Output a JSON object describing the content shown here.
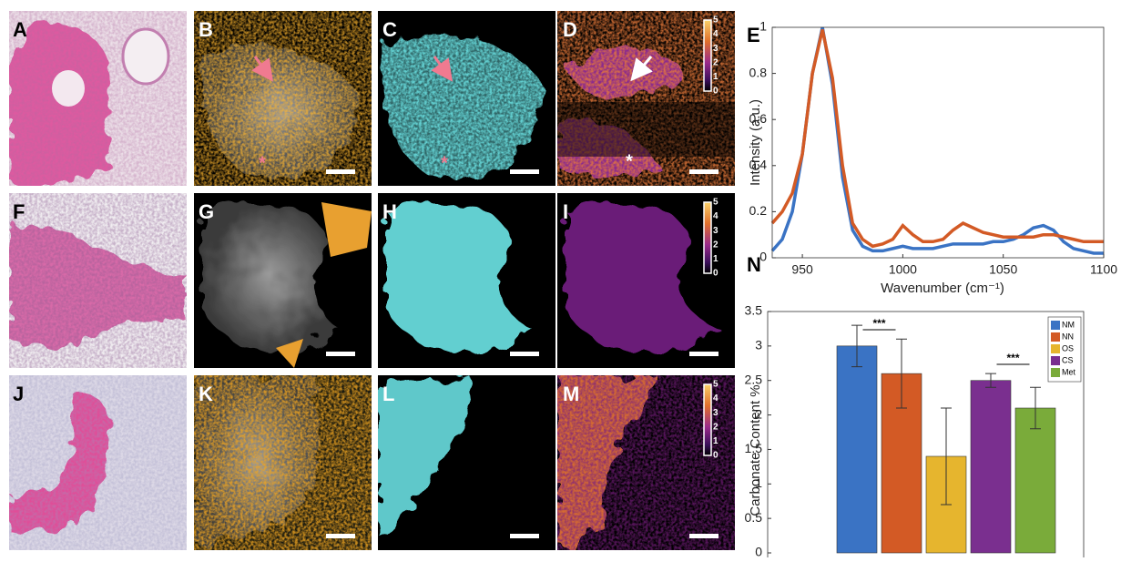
{
  "panel_labels": [
    "A",
    "B",
    "C",
    "D",
    "E",
    "F",
    "G",
    "H",
    "I",
    "J",
    "K",
    "L",
    "M",
    "N"
  ],
  "colorbar_ticks": [
    5,
    4,
    3,
    2,
    1,
    0
  ],
  "annotations": [
    "*",
    "*",
    "*"
  ],
  "chart_data": [
    {
      "type": "line",
      "xlabel": "Wavenumber (cm⁻¹)",
      "ylabel": "Intensity (a.u.)",
      "x": [
        935,
        940,
        945,
        950,
        955,
        960,
        965,
        970,
        975,
        980,
        985,
        990,
        995,
        1000,
        1005,
        1010,
        1015,
        1020,
        1025,
        1030,
        1035,
        1040,
        1045,
        1050,
        1055,
        1060,
        1065,
        1070,
        1075,
        1080,
        1085,
        1090,
        1095,
        1100
      ],
      "series": [
        {
          "color": "#3a73c4",
          "values": [
            0.03,
            0.08,
            0.2,
            0.45,
            0.8,
            1.0,
            0.75,
            0.35,
            0.12,
            0.05,
            0.03,
            0.03,
            0.04,
            0.05,
            0.04,
            0.04,
            0.04,
            0.05,
            0.06,
            0.06,
            0.06,
            0.06,
            0.07,
            0.07,
            0.08,
            0.1,
            0.13,
            0.14,
            0.12,
            0.07,
            0.04,
            0.03,
            0.02,
            0.02
          ]
        },
        {
          "color": "#d35a25",
          "values": [
            0.15,
            0.2,
            0.28,
            0.45,
            0.8,
            0.99,
            0.78,
            0.4,
            0.15,
            0.08,
            0.05,
            0.06,
            0.08,
            0.14,
            0.1,
            0.07,
            0.07,
            0.08,
            0.12,
            0.15,
            0.13,
            0.11,
            0.1,
            0.09,
            0.09,
            0.09,
            0.09,
            0.1,
            0.1,
            0.09,
            0.08,
            0.07,
            0.07,
            0.07
          ]
        }
      ],
      "xlim": [
        935,
        1100
      ],
      "xticks": [
        950,
        1000,
        1050,
        1100
      ],
      "ylim": [
        0,
        1
      ],
      "yticks": [
        0,
        0.2,
        0.4,
        0.6,
        0.8,
        1
      ]
    },
    {
      "type": "bar",
      "ylabel": "Carbonate Content %",
      "series": [
        {
          "name": "NM",
          "color": "#3a73c4",
          "values": [
            3.0
          ],
          "errors": [
            0.3
          ]
        },
        {
          "name": "NN",
          "color": "#d35a25",
          "values": [
            2.6
          ],
          "errors": [
            0.5
          ]
        },
        {
          "name": "OS",
          "color": "#e6b52e",
          "values": [
            1.4
          ],
          "errors": [
            0.7
          ]
        },
        {
          "name": "CS",
          "color": "#7a2f8f",
          "values": [
            2.5
          ],
          "errors": [
            0.1
          ]
        },
        {
          "name": "Met",
          "color": "#7aab3a",
          "values": [
            2.1
          ],
          "errors": [
            0.3
          ]
        }
      ],
      "annotations": [
        "***",
        "***"
      ],
      "legend": "top-right",
      "ylim": [
        0,
        3.5
      ],
      "yticks": [
        0,
        0.5,
        1,
        1.5,
        2,
        2.5,
        3,
        3.5
      ]
    }
  ]
}
